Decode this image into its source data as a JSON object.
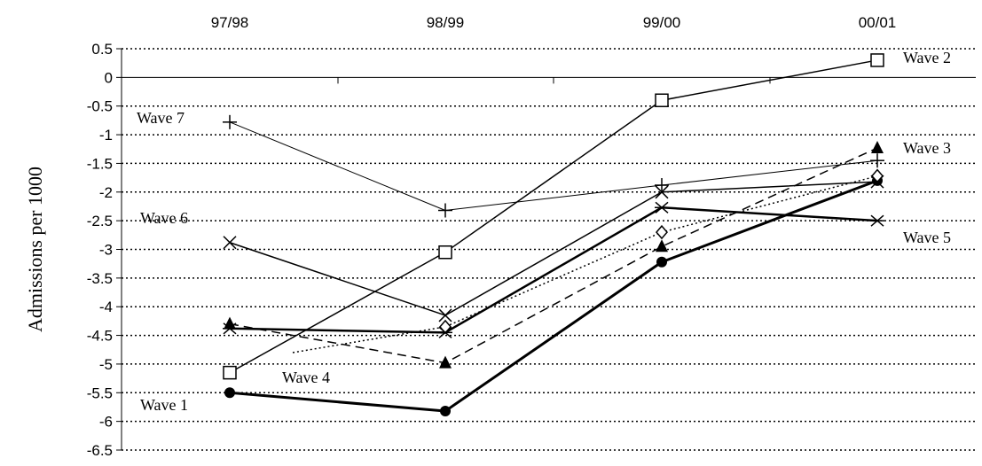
{
  "chart_data": {
    "type": "line",
    "categories": [
      "97/98",
      "98/99",
      "99/00",
      "00/01"
    ],
    "ylabel": "Admissions per 1000",
    "xlabel": "",
    "ylim": [
      -6.5,
      0.5
    ],
    "yticks": [
      0.5,
      0,
      -0.5,
      -1,
      -1.5,
      -2,
      -2.5,
      -3,
      -3.5,
      -4,
      -4.5,
      -5,
      -5.5,
      -6,
      -6.5
    ],
    "ytick_labels": [
      "0.5",
      "0",
      "-0.5",
      "-1",
      "-1.5",
      "-2",
      "-2.5",
      "-3",
      "-3.5",
      "-4",
      "-4.5",
      "-5",
      "-5.5",
      "-6",
      "-6.5"
    ],
    "x_axis_position": "top",
    "grid": "horizontal dotted",
    "series": [
      {
        "name": "Wave 1",
        "values": [
          -5.5,
          -5.82,
          -3.22,
          -1.8
        ],
        "marker": "circle-filled",
        "dash": "solid",
        "stroke_width": 3
      },
      {
        "name": "Wave 2",
        "values": [
          -5.15,
          -3.05,
          -0.4,
          0.3
        ],
        "marker": "square-open",
        "dash": "solid",
        "stroke_width": 1.5
      },
      {
        "name": "Wave 3",
        "values": [
          -4.3,
          -4.98,
          -2.95,
          -1.23
        ],
        "marker": "triangle-filled",
        "dash": "dashed",
        "stroke_width": 1.5
      },
      {
        "name": "Wave 4",
        "values": [
          -4.8,
          -4.35,
          -2.7,
          -1.72
        ],
        "marker": "diamond-open",
        "dash": "dotted",
        "stroke_width": 1.5
      },
      {
        "name": "Wave 5",
        "values": [
          -4.38,
          -4.45,
          -2.27,
          -2.5
        ],
        "marker": "star",
        "dash": "solid",
        "stroke_width": 2.5
      },
      {
        "name": "Wave 6",
        "values": [
          -2.88,
          -4.15,
          -2.0,
          -1.82
        ],
        "marker": "x",
        "dash": "solid",
        "stroke_width": 1.5
      },
      {
        "name": "Wave 7",
        "values": [
          -0.78,
          -2.32,
          -1.88,
          -1.45
        ],
        "marker": "plus",
        "dash": "solid",
        "stroke_width": 1
      }
    ],
    "annotations": [
      {
        "series": "Wave 1",
        "text": "Wave 1"
      },
      {
        "series": "Wave 2",
        "text": "Wave 2"
      },
      {
        "series": "Wave 3",
        "text": "Wave 3"
      },
      {
        "series": "Wave 4",
        "text": "Wave 4"
      },
      {
        "series": "Wave 5",
        "text": "Wave 5"
      },
      {
        "series": "Wave 6",
        "text": "Wave 6"
      },
      {
        "series": "Wave 7",
        "text": "Wave 7"
      }
    ]
  }
}
